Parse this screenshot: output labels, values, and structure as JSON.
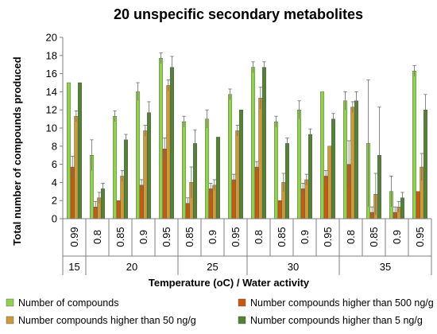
{
  "chart_data": {
    "type": "bar",
    "title": "20 unspecific secondary metabolites",
    "xlabel": "Temperature (oC) / Water activity",
    "ylabel": "Total number of compounds produced",
    "ylim": [
      0,
      20
    ],
    "yticks": [
      0,
      2,
      4,
      6,
      8,
      10,
      12,
      14,
      16,
      18,
      20
    ],
    "grid": false,
    "legend_position": "bottom",
    "groups": [
      {
        "label": "15",
        "categories": [
          "0.99"
        ]
      },
      {
        "label": "20",
        "categories": [
          "0.8",
          "0.85",
          "0.9",
          "0.95"
        ]
      },
      {
        "label": "25",
        "categories": [
          "0.85",
          "0.9",
          "0.95"
        ]
      },
      {
        "label": "30",
        "categories": [
          "0.8",
          "0.85",
          "0.9",
          "0.95"
        ]
      },
      {
        "label": "35",
        "categories": [
          "0.8",
          "0.85",
          "0.9",
          "0.95"
        ]
      }
    ],
    "categories": [
      "0.99",
      "0.8",
      "0.85",
      "0.9",
      "0.95",
      "0.85",
      "0.9",
      "0.95",
      "0.8",
      "0.85",
      "0.9",
      "0.95",
      "0.8",
      "0.85",
      "0.9",
      "0.95"
    ],
    "series": [
      {
        "name": "Number of compounds",
        "color": "#92d050",
        "values": [
          15,
          7,
          11.3,
          14,
          17.7,
          10.7,
          11,
          13.7,
          16.7,
          10.7,
          12,
          14,
          13,
          8.3,
          3,
          16.3
        ],
        "errors": [
          0,
          1.7,
          0.6,
          1,
          0.6,
          0.6,
          1,
          0.6,
          0.6,
          0.6,
          1,
          0,
          1,
          7,
          1.7,
          0.6
        ]
      },
      {
        "name": "Number compounds higher than 500 ng/g",
        "color": "#c55a11",
        "values": [
          5.7,
          1.3,
          2,
          3.7,
          7.7,
          1.7,
          3.3,
          4.3,
          5.7,
          2,
          3.3,
          4.7,
          6,
          0.7,
          0.7,
          3
        ],
        "errors": [
          1.2,
          0.6,
          0,
          0.6,
          1.2,
          0.6,
          0.6,
          0.6,
          0.6,
          0,
          0.6,
          0.6,
          2.6,
          0.6,
          0.6,
          0
        ]
      },
      {
        "name": "Number compounds higher than 50 ng/g",
        "color": "#ca9a3b",
        "values": [
          11.3,
          2.3,
          4.7,
          9.7,
          14.7,
          4,
          3.7,
          9.7,
          13.3,
          4,
          4.3,
          8,
          12.3,
          2.7,
          1.3,
          5.7
        ],
        "errors": [
          0.6,
          0.6,
          0.6,
          0.6,
          0.6,
          1.7,
          0.6,
          0.6,
          1.2,
          1,
          0.6,
          0,
          0.6,
          2.3,
          0.6,
          1.5
        ]
      },
      {
        "name": "Number compounds higher than 5 ng/g",
        "color": "#548235",
        "values": [
          15,
          3.3,
          8.7,
          11.7,
          16.7,
          8.3,
          9,
          12,
          16.7,
          8.3,
          9.3,
          11,
          13,
          7,
          2.3,
          12
        ],
        "errors": [
          0,
          0.6,
          0.6,
          1.2,
          1.2,
          1.5,
          0,
          0,
          0.6,
          0.6,
          0.6,
          0.6,
          1,
          5.3,
          0.6,
          1.7
        ]
      }
    ]
  }
}
